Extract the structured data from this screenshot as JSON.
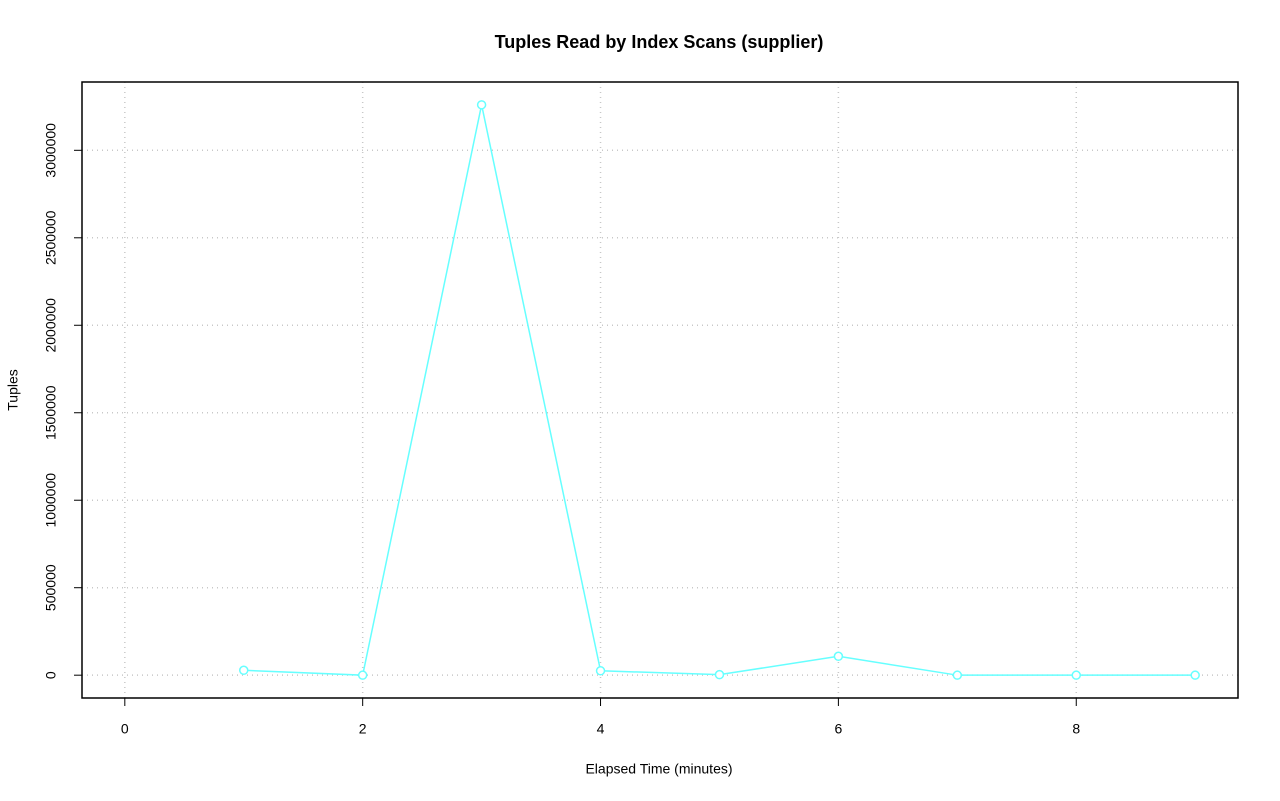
{
  "chart_data": {
    "type": "line",
    "title": "Tuples Read by Index Scans (supplier)",
    "x_label": "Elapsed Time (minutes)",
    "y_label": "Tuples",
    "x": [
      1,
      2,
      3,
      4,
      5,
      6,
      7,
      8,
      9
    ],
    "series": [
      {
        "name": "supplier",
        "color": "#66ffff",
        "values": [
          28000,
          0,
          3260000,
          25000,
          3000,
          108000,
          0,
          0,
          0
        ]
      }
    ],
    "xlim": [
      -0.36,
      9.36
    ],
    "xticks": [
      0,
      2,
      4,
      6,
      8
    ],
    "ylim": [
      -130400,
      3390400
    ],
    "yticks": [
      0,
      500000,
      1000000,
      1500000,
      2000000,
      2500000,
      3000000
    ],
    "grid": true
  }
}
